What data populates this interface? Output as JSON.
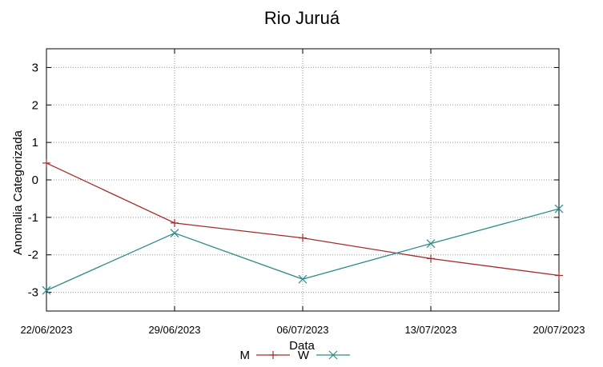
{
  "chart_data": {
    "type": "line",
    "title": "Rio Juruá",
    "xlabel": "Data",
    "ylabel": "Anomalia Categorizada",
    "categories": [
      "22/06/2023",
      "29/06/2023",
      "06/07/2023",
      "13/07/2023",
      "20/07/2023"
    ],
    "ylim": [
      -3.5,
      3.5
    ],
    "yticks": [
      -3,
      -2,
      -1,
      0,
      1,
      2,
      3
    ],
    "grid": true,
    "legend_position": "bottom-center",
    "series": [
      {
        "name": "M",
        "color": "#a52a2a",
        "marker": "plus",
        "values": [
          0.45,
          -1.15,
          -1.55,
          -2.1,
          -2.55
        ]
      },
      {
        "name": "W",
        "color": "#2e8b8b",
        "marker": "cross",
        "values": [
          -2.95,
          -1.42,
          -2.65,
          -1.7,
          -0.77
        ]
      }
    ]
  }
}
